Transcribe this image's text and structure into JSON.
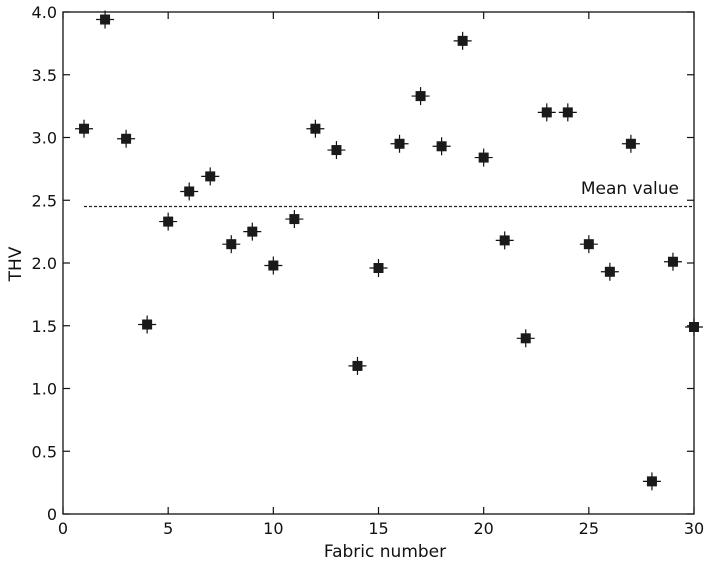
{
  "chart_data": {
    "type": "scatter",
    "xlabel": "Fabric number",
    "ylabel": "THV",
    "xlim": [
      0,
      30
    ],
    "ylim": [
      0,
      4.0
    ],
    "x_ticks": [
      "0",
      "5",
      "10",
      "15",
      "20",
      "25",
      "30"
    ],
    "y_ticks": [
      "0",
      "0.5",
      "1.0",
      "1.5",
      "2.0",
      "2.5",
      "3.0",
      "3.5",
      "4.0"
    ],
    "grid": false,
    "marker": "square-with-error-bars",
    "series": [
      {
        "x": [
          1,
          2,
          3,
          4,
          5,
          6,
          7,
          8,
          9,
          10,
          11,
          12,
          13,
          14,
          15,
          16,
          17,
          18,
          19,
          20,
          21,
          22,
          23,
          24,
          25,
          26,
          27,
          28,
          29,
          30
        ],
        "values": [
          3.07,
          3.94,
          2.99,
          1.51,
          2.33,
          2.57,
          2.69,
          2.15,
          2.25,
          1.98,
          2.35,
          3.07,
          2.9,
          1.18,
          1.96,
          2.95,
          3.33,
          2.93,
          3.77,
          2.84,
          2.18,
          1.4,
          3.2,
          3.2,
          2.15,
          1.93,
          2.95,
          0.26,
          2.01,
          1.49
        ]
      }
    ],
    "mean_line": {
      "label": "Mean value",
      "y": 2.45,
      "x_start": 1,
      "x_end": 30
    }
  }
}
